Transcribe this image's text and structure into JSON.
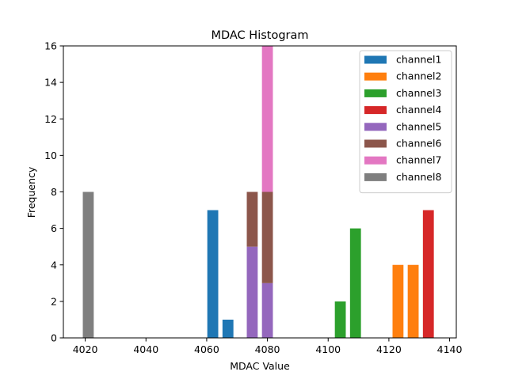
{
  "chart_data": {
    "type": "bar",
    "stacked": true,
    "title": "MDAC Histogram",
    "xlabel": "MDAC Value",
    "ylabel": "Frequency",
    "xlim": [
      4012.8,
      4142.2
    ],
    "ylim": [
      0,
      16
    ],
    "xticks": [
      "4020",
      "4040",
      "4060",
      "4080",
      "4100",
      "4120",
      "4140"
    ],
    "yticks": [
      "0",
      "2",
      "4",
      "6",
      "8",
      "10",
      "12",
      "14",
      "16"
    ],
    "bar_width": 3.6,
    "legend_position": "top-right",
    "series": [
      {
        "name": "channel1",
        "color": "#1f77b4",
        "bars": [
          {
            "x": 4062,
            "value": 7
          },
          {
            "x": 4067,
            "value": 1
          }
        ]
      },
      {
        "name": "channel2",
        "color": "#ff7f0e",
        "bars": [
          {
            "x": 4123,
            "value": 4
          },
          {
            "x": 4128,
            "value": 4
          }
        ]
      },
      {
        "name": "channel3",
        "color": "#2ca02c",
        "bars": [
          {
            "x": 4104,
            "value": 2
          },
          {
            "x": 4109,
            "value": 6
          }
        ]
      },
      {
        "name": "channel4",
        "color": "#d62728",
        "bars": [
          {
            "x": 4133,
            "value": 7
          }
        ]
      },
      {
        "name": "channel5",
        "color": "#9467bd",
        "bars": [
          {
            "x": 4075,
            "value": 5
          },
          {
            "x": 4080,
            "value": 3
          }
        ]
      },
      {
        "name": "channel6",
        "color": "#8c564b",
        "bars": [
          {
            "x": 4075,
            "value": 3
          },
          {
            "x": 4080,
            "value": 5
          }
        ]
      },
      {
        "name": "channel7",
        "color": "#e377c2",
        "bars": [
          {
            "x": 4080,
            "value": 8
          }
        ]
      },
      {
        "name": "channel8",
        "color": "#7f7f7f",
        "bars": [
          {
            "x": 4021,
            "value": 8
          }
        ]
      }
    ]
  }
}
